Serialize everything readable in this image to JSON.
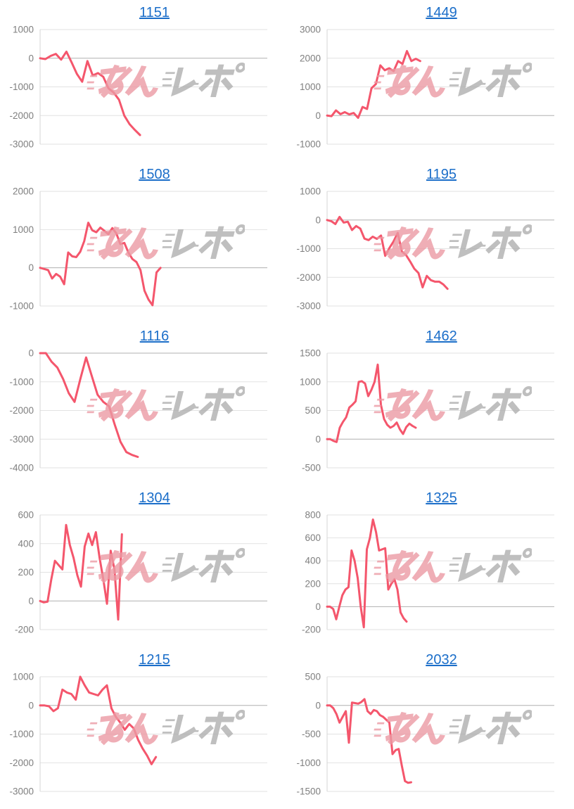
{
  "theme": {
    "line_color": "#f4566c",
    "link_color": "#1b6ec9",
    "grid_color": "#e2e2e2",
    "zero_line_color": "#b0b0b0",
    "axis_color": "#d4d4d4",
    "tick_label_color": "#7f7f7f",
    "watermark_pink": "#ec9aa4",
    "watermark_gray": "#b0b0b0",
    "background": "#ffffff"
  },
  "watermark": {
    "text": "みんレポ"
  },
  "chart_data": [
    {
      "title": "1151",
      "type": "line",
      "y_max": 1000,
      "y_min": -3000,
      "y_step": 1000,
      "x_span": 0.44,
      "values": [
        0,
        -30,
        80,
        150,
        -50,
        230,
        -150,
        -550,
        -820,
        -100,
        -600,
        -520,
        -650,
        -1050,
        -1200,
        -1450,
        -2000,
        -2300,
        -2500,
        -2680
      ]
    },
    {
      "title": "1449",
      "type": "line",
      "y_max": 3000,
      "y_min": -1000,
      "y_step": 1000,
      "x_span": 0.41,
      "values": [
        0,
        -20,
        180,
        50,
        120,
        40,
        90,
        -80,
        300,
        230,
        950,
        1100,
        1750,
        1580,
        1650,
        1550,
        1900,
        1800,
        2250,
        1900,
        1980,
        1900
      ]
    },
    {
      "title": "1508",
      "type": "line",
      "y_max": 2000,
      "y_min": -1000,
      "y_step": 1000,
      "x_span": 0.53,
      "values": [
        0,
        -30,
        -60,
        -280,
        -160,
        -230,
        -430,
        400,
        300,
        280,
        420,
        700,
        1180,
        980,
        930,
        1050,
        970,
        880,
        1040,
        900,
        620,
        650,
        400,
        230,
        150,
        -60,
        -600,
        -830,
        -980,
        -120,
        0
      ]
    },
    {
      "title": "1195",
      "type": "line",
      "y_max": 1000,
      "y_min": -3000,
      "y_step": 1000,
      "x_span": 0.53,
      "values": [
        0,
        -40,
        -140,
        110,
        -90,
        -60,
        -350,
        -210,
        -300,
        -650,
        -700,
        -580,
        -660,
        -540,
        -1250,
        -980,
        -750,
        -450,
        -1100,
        -1220,
        -1450,
        -1700,
        -1850,
        -2350,
        -1950,
        -2100,
        -2150,
        -2150,
        -2250,
        -2400
      ]
    },
    {
      "title": "1116",
      "type": "line",
      "y_max": 0,
      "y_min": -4000,
      "y_step": 1000,
      "x_span": 0.43,
      "values": [
        0,
        0,
        -300,
        -500,
        -900,
        -1400,
        -1700,
        -900,
        -150,
        -800,
        -1450,
        -1700,
        -1850,
        -2500,
        -3100,
        -3450,
        -3550,
        -3620
      ]
    },
    {
      "title": "1462",
      "type": "line",
      "y_max": 1500,
      "y_min": -500,
      "y_step": 500,
      "x_span": 0.39,
      "values": [
        0,
        0,
        -30,
        -50,
        200,
        300,
        380,
        550,
        600,
        660,
        1000,
        1010,
        970,
        750,
        860,
        1000,
        1300,
        600,
        350,
        250,
        200,
        230,
        290,
        170,
        90,
        210,
        270,
        230,
        200
      ]
    },
    {
      "title": "1304",
      "type": "line",
      "y_max": 600,
      "y_min": -200,
      "y_step": 200,
      "x_span": 0.36,
      "values": [
        0,
        -10,
        -5,
        150,
        280,
        250,
        220,
        530,
        390,
        300,
        180,
        100,
        380,
        470,
        390,
        480,
        300,
        150,
        -20,
        350,
        220,
        -130,
        465
      ]
    },
    {
      "title": "1325",
      "type": "line",
      "y_max": 800,
      "y_min": -200,
      "y_step": 200,
      "x_span": 0.35,
      "values": [
        0,
        0,
        -20,
        -110,
        0,
        100,
        150,
        170,
        490,
        400,
        250,
        0,
        -180,
        500,
        600,
        760,
        650,
        490,
        500,
        510,
        150,
        200,
        240,
        150,
        -50,
        -100,
        -130
      ]
    },
    {
      "title": "1215",
      "type": "line",
      "y_max": 1000,
      "y_min": -3000,
      "y_step": 1000,
      "x_span": 0.51,
      "values": [
        0,
        0,
        -30,
        -200,
        -100,
        550,
        450,
        400,
        200,
        1000,
        700,
        450,
        400,
        350,
        550,
        700,
        -100,
        -400,
        -600,
        -850,
        -650,
        -800,
        -1200,
        -1500,
        -1750,
        -2050,
        -1800
      ]
    },
    {
      "title": "2032",
      "type": "line",
      "y_max": 500,
      "y_min": -1500,
      "y_step": 500,
      "x_span": 0.37,
      "values": [
        0,
        0,
        -50,
        -150,
        -300,
        -200,
        -100,
        -650,
        50,
        40,
        30,
        60,
        110,
        -100,
        -150,
        -80,
        -100,
        -170,
        -200,
        -250,
        -300,
        -850,
        -780,
        -760,
        -1050,
        -1320,
        -1350,
        -1340
      ]
    }
  ]
}
